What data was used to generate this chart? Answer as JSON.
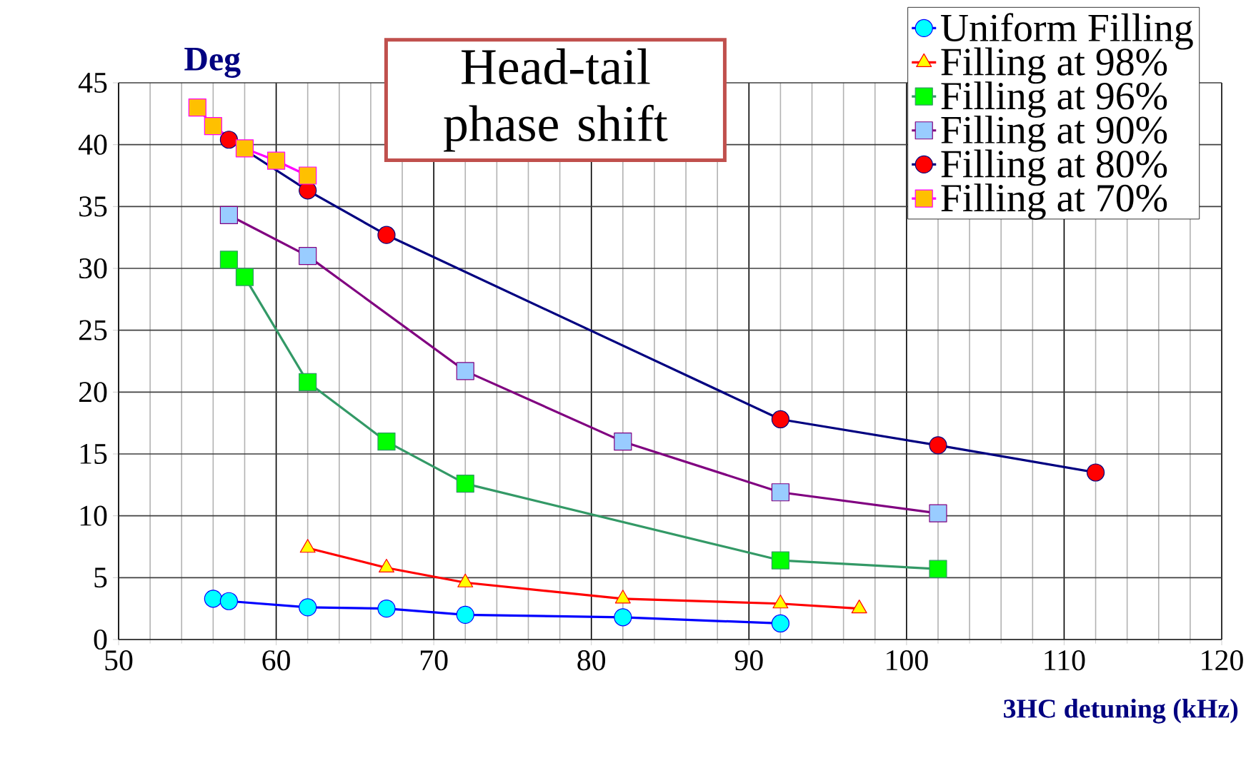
{
  "chart_data": {
    "type": "line",
    "title": "Head-tail phase shift",
    "xlabel": "3HC detuning (kHz)",
    "ylabel": "Deg",
    "xlim": [
      50,
      120
    ],
    "xticks": [
      50,
      60,
      70,
      80,
      90,
      100,
      110,
      120
    ],
    "ylim": [
      0,
      45
    ],
    "yticks": [
      0,
      5,
      10,
      15,
      20,
      25,
      30,
      35,
      40,
      45
    ],
    "grid": true,
    "legend": "top right",
    "line_style": "solid",
    "series": [
      {
        "name": "Uniform Filling",
        "color": "#0000ff",
        "marker": "circle",
        "x": [
          56,
          57,
          62,
          67,
          72,
          82,
          92
        ],
        "values": [
          3.3,
          3.1,
          2.6,
          2.5,
          2.0,
          1.8,
          1.3
        ]
      },
      {
        "name": "Filling at 98%",
        "color": "#ff0000",
        "marker": "triangle",
        "x": [
          62,
          67,
          72,
          82,
          92,
          97
        ],
        "values": [
          7.4,
          5.8,
          4.6,
          3.3,
          2.9,
          2.5
        ]
      },
      {
        "name": "Filling at 96%",
        "color": "#339966",
        "marker": "square",
        "x": [
          57,
          58,
          62,
          67,
          72,
          92,
          102
        ],
        "values": [
          30.7,
          29.3,
          20.8,
          16.0,
          12.6,
          6.4,
          5.7
        ]
      },
      {
        "name": "Filling at 90%",
        "color": "#800080",
        "marker": "square",
        "x": [
          57,
          62,
          72,
          82,
          92,
          102
        ],
        "values": [
          34.3,
          31.0,
          21.7,
          16.0,
          11.9,
          10.2
        ]
      },
      {
        "name": "Filling at 80%",
        "color": "#000080",
        "marker": "circle",
        "x": [
          57,
          62,
          67,
          92,
          102,
          112
        ],
        "values": [
          40.4,
          36.3,
          32.7,
          17.8,
          15.7,
          13.5
        ]
      },
      {
        "name": "Filling at 70%",
        "color": "#ff00ff",
        "marker": "square",
        "x": [
          55,
          56,
          58,
          60,
          62
        ],
        "values": [
          43.0,
          41.5,
          39.7,
          38.7,
          37.5
        ]
      }
    ]
  }
}
